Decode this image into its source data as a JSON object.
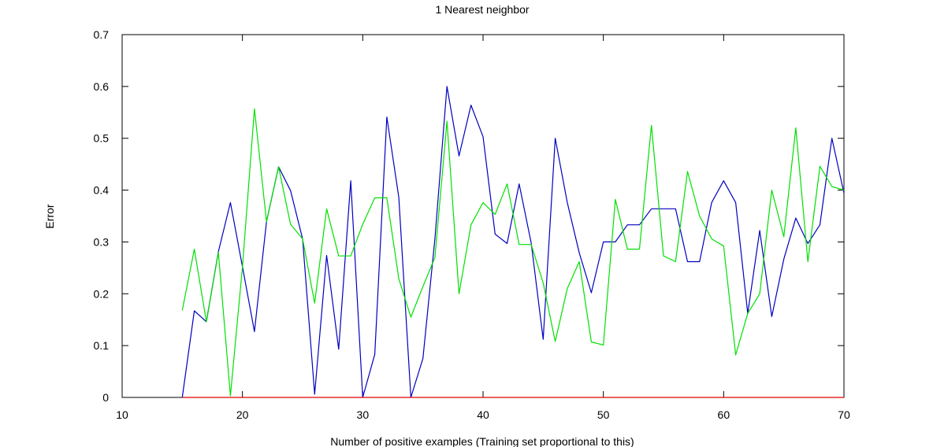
{
  "chart_data": {
    "type": "line",
    "title": "1 Nearest neighbor",
    "xlabel": "Number of positive examples (Training set proportional to this)",
    "ylabel": "Error",
    "xlim": [
      10,
      70
    ],
    "ylim": [
      0,
      0.7
    ],
    "xticks": [
      10,
      20,
      30,
      40,
      50,
      60,
      70
    ],
    "yticks": [
      0,
      0.1,
      0.2,
      0.3,
      0.4,
      0.5,
      0.6,
      0.7
    ],
    "xtick_labels": [
      "10",
      "20",
      "30",
      "40",
      "50",
      "60",
      "70"
    ],
    "ytick_labels": [
      "0",
      "0.1",
      "0.2",
      "0.3",
      "0.4",
      "0.5",
      "0.6",
      "0.7"
    ],
    "grid": false,
    "series": [
      {
        "color": "#0000c0",
        "x": [
          15,
          16,
          17,
          18,
          19,
          20,
          21,
          22,
          23,
          24,
          25,
          26,
          27,
          28,
          29,
          30,
          31,
          32,
          33,
          34,
          35,
          36,
          37,
          38,
          39,
          40,
          41,
          42,
          43,
          44,
          45,
          46,
          47,
          48,
          49,
          50,
          51,
          52,
          53,
          54,
          55,
          56,
          57,
          58,
          59,
          60,
          61,
          62,
          63,
          64,
          65,
          66,
          67,
          68,
          69,
          70
        ],
        "y": [
          0,
          0.167,
          0.146,
          0.281,
          0.376,
          0.252,
          0.127,
          0.339,
          0.445,
          0.399,
          0.306,
          0.006,
          0.274,
          0.093,
          0.418,
          0,
          0.083,
          0.541,
          0.386,
          0,
          0.075,
          0.306,
          0.6,
          0.466,
          0.564,
          0.503,
          0.315,
          0.297,
          0.412,
          0.298,
          0.112,
          0.5,
          0.376,
          0.279,
          0.202,
          0.3,
          0.3,
          0.333,
          0.333,
          0.364,
          0.364,
          0.364,
          0.262,
          0.262,
          0.376,
          0.418,
          0.376,
          0.162,
          0.322,
          0.156,
          0.267,
          0.346,
          0.297,
          0.333,
          0.5,
          0.394
        ]
      },
      {
        "color": "#00e000",
        "x": [
          15,
          16,
          17,
          18,
          19,
          20,
          21,
          22,
          23,
          24,
          25,
          26,
          27,
          28,
          29,
          30,
          31,
          32,
          33,
          34,
          35,
          36,
          37,
          38,
          39,
          40,
          41,
          42,
          43,
          44,
          45,
          46,
          47,
          48,
          49,
          50,
          51,
          52,
          53,
          54,
          55,
          56,
          57,
          58,
          59,
          60,
          61,
          62,
          63,
          64,
          65,
          66,
          67,
          68,
          69,
          70
        ],
        "y": [
          0.168,
          0.286,
          0.146,
          0.28,
          0.003,
          0.252,
          0.557,
          0.339,
          0.445,
          0.334,
          0.306,
          0.182,
          0.364,
          0.273,
          0.273,
          0.334,
          0.385,
          0.385,
          0.229,
          0.155,
          0.214,
          0.27,
          0.533,
          0.2,
          0.333,
          0.376,
          0.353,
          0.412,
          0.295,
          0.295,
          0.221,
          0.108,
          0.21,
          0.262,
          0.107,
          0.101,
          0.382,
          0.286,
          0.286,
          0.525,
          0.273,
          0.262,
          0.436,
          0.35,
          0.306,
          0.292,
          0.082,
          0.162,
          0.2,
          0.4,
          0.31,
          0.52,
          0.262,
          0.446,
          0.407,
          0.4
        ]
      },
      {
        "color": "#e00000",
        "x": [
          15,
          70
        ],
        "y": [
          0,
          0
        ]
      }
    ]
  }
}
